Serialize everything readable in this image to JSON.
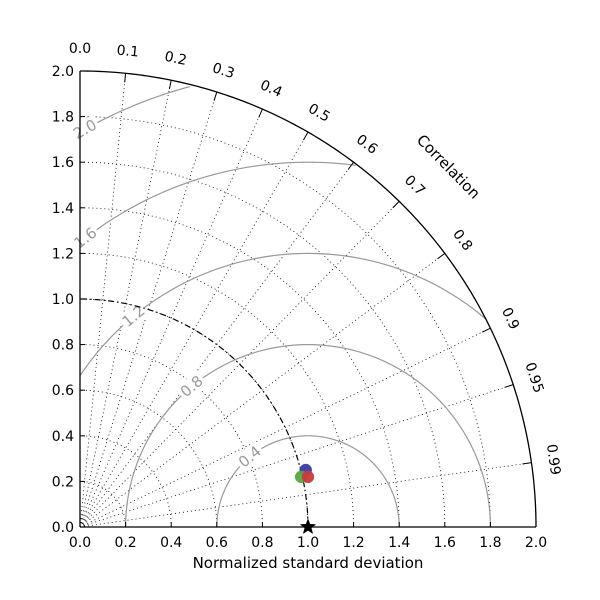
{
  "chart_data": {
    "type": "scatter",
    "title": "",
    "xlabel": "Normalized standard deviation",
    "ylabel": "",
    "angular_label": "Correlation",
    "xlim": [
      0,
      2.0
    ],
    "ylim": [
      0,
      2.0
    ],
    "std_ticks": [
      "0.0",
      "0.2",
      "0.4",
      "0.6",
      "0.8",
      "1.0",
      "1.2",
      "1.4",
      "1.6",
      "1.8",
      "2.0"
    ],
    "std_tick_values": [
      0,
      0.2,
      0.4,
      0.6,
      0.8,
      1.0,
      1.2,
      1.4,
      1.6,
      1.8,
      2.0
    ],
    "correlation_ticks": [
      {
        "value": 0.0,
        "label": "0.0"
      },
      {
        "value": 0.1,
        "label": "0.1"
      },
      {
        "value": 0.2,
        "label": "0.2"
      },
      {
        "value": 0.3,
        "label": "0.3"
      },
      {
        "value": 0.4,
        "label": "0.4"
      },
      {
        "value": 0.5,
        "label": "0.5"
      },
      {
        "value": 0.6,
        "label": "0.6"
      },
      {
        "value": 0.7,
        "label": "0.7"
      },
      {
        "value": 0.8,
        "label": "0.8"
      },
      {
        "value": 0.9,
        "label": "0.9"
      },
      {
        "value": 0.95,
        "label": "0.95"
      },
      {
        "value": 0.99,
        "label": "0.99"
      }
    ],
    "rms_contours": [
      {
        "value": 0.4,
        "label": "0.4"
      },
      {
        "value": 0.8,
        "label": "0.8"
      },
      {
        "value": 1.2,
        "label": "1.2"
      },
      {
        "value": 1.6,
        "label": "1.6"
      },
      {
        "value": 2.0,
        "label": "2.0"
      }
    ],
    "reference": {
      "std": 1.0,
      "correlation": 1.0,
      "marker": "star"
    },
    "reference_std_arc": 1.0,
    "points": [
      {
        "x": 0.99,
        "y": 0.25,
        "color": "#3a3aa8"
      },
      {
        "x": 0.97,
        "y": 0.22,
        "color": "#55a840"
      },
      {
        "x": 1.0,
        "y": 0.22,
        "color": "#c83c3c"
      }
    ],
    "grid": true,
    "colors": {
      "axis": "#000000",
      "grid": "#000000",
      "rms": "#999999"
    }
  }
}
